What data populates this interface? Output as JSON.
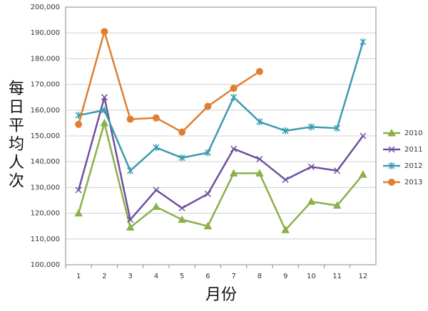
{
  "chart_data": {
    "type": "line",
    "x_label": "月份",
    "y_label": "每日平均人次",
    "categories": [
      "1",
      "2",
      "3",
      "4",
      "5",
      "6",
      "7",
      "8",
      "9",
      "10",
      "11",
      "12"
    ],
    "series": [
      {
        "name": "2010",
        "color": "#8cb04a",
        "marker": "triangle",
        "values": [
          120000,
          155000,
          114500,
          122500,
          117500,
          115000,
          135500,
          135500,
          113500,
          124500,
          123000,
          135000
        ]
      },
      {
        "name": "2011",
        "color": "#7050a0",
        "marker": "x",
        "values": [
          129000,
          165000,
          117500,
          129000,
          122000,
          127500,
          145000,
          141000,
          133000,
          138000,
          136500,
          150000
        ]
      },
      {
        "name": "2012",
        "color": "#3a9cb0",
        "marker": "star",
        "values": [
          158000,
          160000,
          136500,
          145500,
          141500,
          143500,
          165000,
          155500,
          152000,
          153500,
          153000,
          186500
        ]
      },
      {
        "name": "2013",
        "color": "#e07f30",
        "marker": "circle",
        "values": [
          154500,
          190500,
          156500,
          157000,
          151500,
          161500,
          168500,
          175000,
          null,
          null,
          null,
          null
        ]
      }
    ],
    "ylim": [
      100000,
      200000
    ],
    "yticks": [
      {
        "value": 100000,
        "label": "100,000"
      },
      {
        "value": 110000,
        "label": "110,000"
      },
      {
        "value": 120000,
        "label": "120,000"
      },
      {
        "value": 130000,
        "label": "130,000"
      },
      {
        "value": 140000,
        "label": "140,000"
      },
      {
        "value": 150000,
        "label": "150,000"
      },
      {
        "value": 160000,
        "label": "160,000"
      },
      {
        "value": 170000,
        "label": "170,000"
      },
      {
        "value": 180000,
        "label": "180,000"
      },
      {
        "value": 190000,
        "label": "190,000"
      },
      {
        "value": 200000,
        "label": "200,000"
      }
    ],
    "grid": true,
    "legend": "right"
  }
}
